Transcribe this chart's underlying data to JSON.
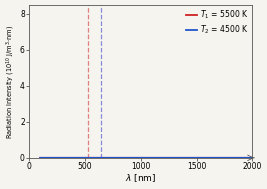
{
  "T1": 5500,
  "T2": 4500,
  "color1": "#cc2222",
  "color2": "#2255cc",
  "dashed_color1": "#e08080",
  "dashed_color2": "#8888dd",
  "lambda_min": 100,
  "lambda_max": 2000,
  "ylim": [
    0,
    8.5
  ],
  "yticks": [
    0,
    2,
    4,
    6,
    8
  ],
  "xticks": [
    0,
    500,
    1000,
    1500,
    2000
  ],
  "xlabel": "$\\lambda$ [nm]",
  "ylabel": "Radiation Intensity ($10^{10}$ J/m$^3{\\cdot}$nm)",
  "legend1": "$T_1$ = 5500 K",
  "legend2": "$T_2$ = 4500 K",
  "figsize": [
    2.67,
    1.89
  ],
  "dpi": 100,
  "bg_color": "#f5f4ee",
  "wien_b": 2897771.9
}
